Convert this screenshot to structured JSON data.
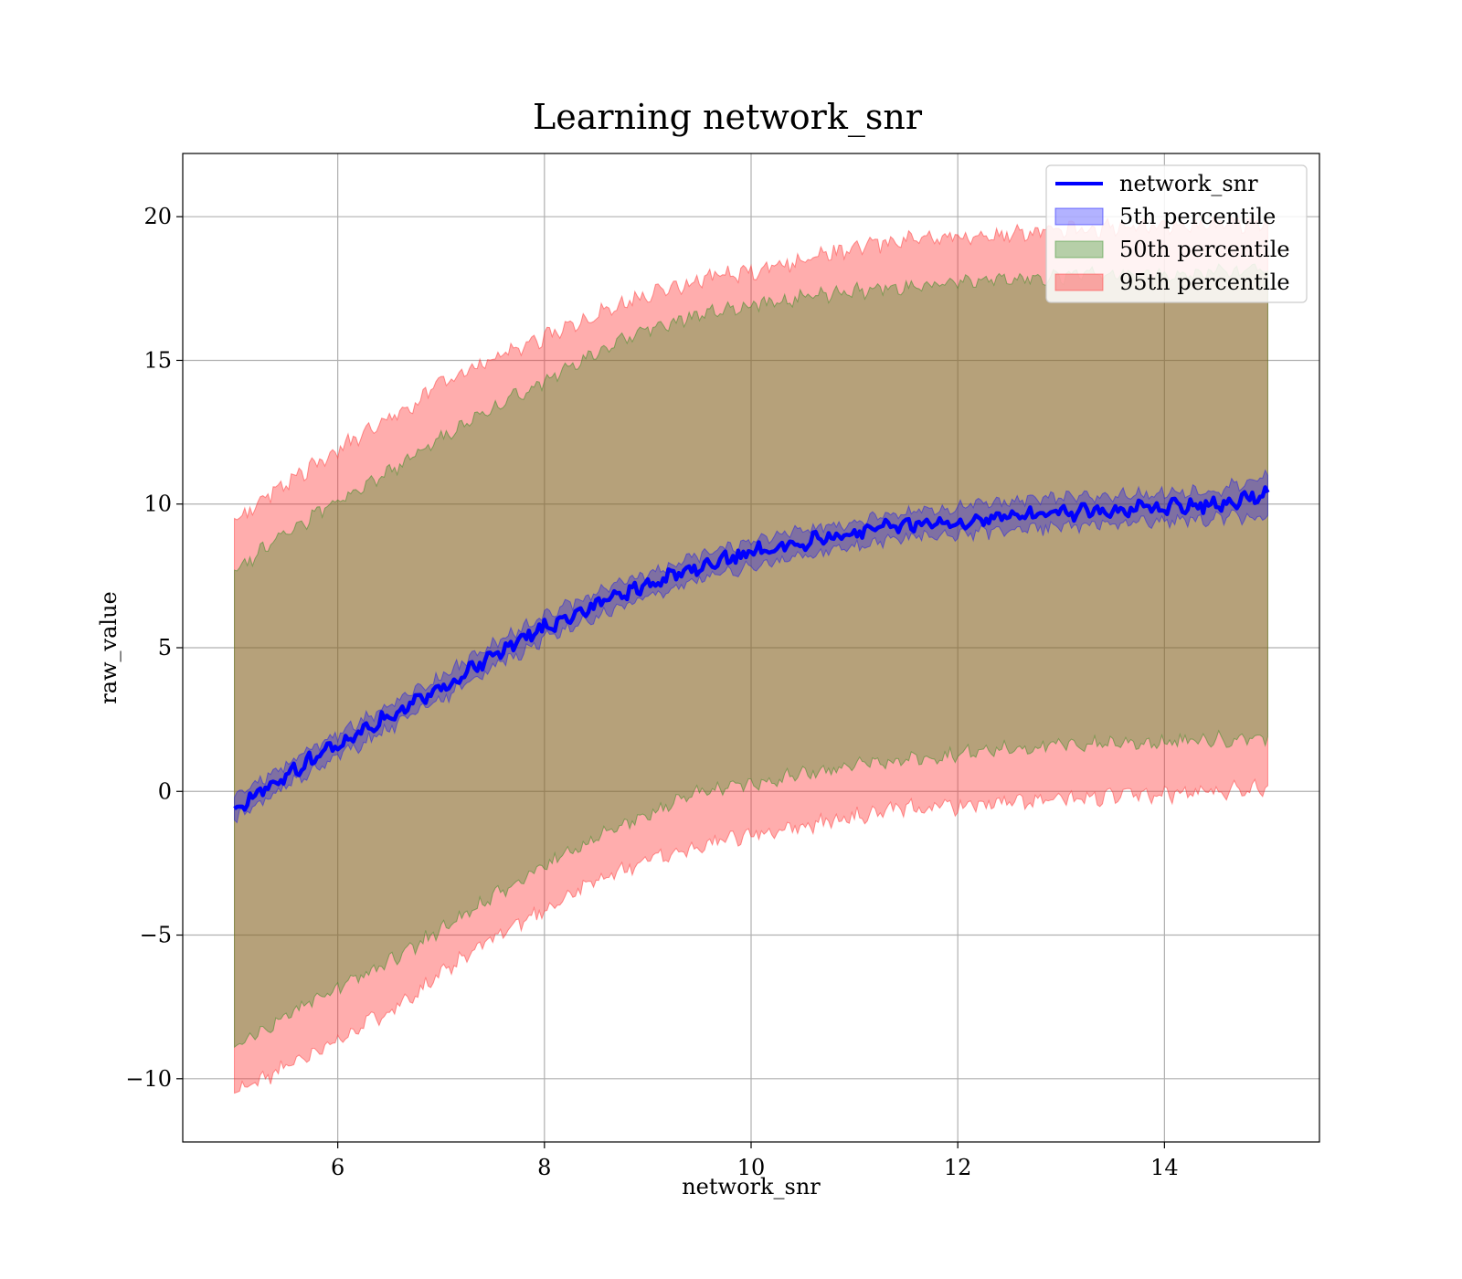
{
  "chart_data": {
    "type": "area",
    "title": "Learning network_snr",
    "xlabel": "network_snr",
    "ylabel": "raw_value",
    "xlim": [
      4.5,
      15.5
    ],
    "ylim": [
      -12.2,
      22.2
    ],
    "xticks": [
      6,
      8,
      10,
      12,
      14
    ],
    "xtick_labels": [
      "6",
      "8",
      "10",
      "12",
      "14"
    ],
    "yticks": [
      -10,
      -5,
      0,
      5,
      10,
      15,
      20
    ],
    "ytick_labels": [
      "−10",
      "−5",
      "0",
      "5",
      "10",
      "15",
      "20"
    ],
    "grid": true,
    "legend_position": "top-right",
    "x": [
      5.0,
      5.5,
      6.0,
      6.5,
      7.0,
      7.5,
      8.0,
      8.5,
      9.0,
      9.5,
      10.0,
      10.5,
      11.0,
      11.5,
      12.0,
      12.5,
      13.0,
      13.5,
      14.0,
      14.5,
      15.0
    ],
    "series": [
      {
        "name": "network_snr",
        "kind": "line",
        "color": "#0000ff",
        "values": [
          -0.6,
          0.6,
          1.6,
          2.6,
          3.6,
          4.7,
          5.7,
          6.5,
          7.2,
          7.8,
          8.3,
          8.7,
          9.0,
          9.3,
          9.4,
          9.6,
          9.7,
          9.8,
          9.9,
          10.0,
          10.4
        ]
      },
      {
        "name": "5th percentile",
        "kind": "band",
        "color": "#0000ff",
        "opacity": 0.3,
        "lower": [
          -1.0,
          0.2,
          1.2,
          2.2,
          3.2,
          4.3,
          5.3,
          6.1,
          6.8,
          7.4,
          7.8,
          8.2,
          8.5,
          8.8,
          8.9,
          9.1,
          9.2,
          9.3,
          9.4,
          9.5,
          9.6
        ],
        "upper": [
          -0.2,
          1.0,
          2.0,
          3.0,
          4.0,
          5.1,
          6.1,
          6.9,
          7.6,
          8.2,
          8.7,
          9.1,
          9.4,
          9.7,
          9.9,
          10.1,
          10.2,
          10.3,
          10.4,
          10.5,
          11.0
        ]
      },
      {
        "name": "50th percentile",
        "kind": "band",
        "color": "#2e8b1e",
        "opacity": 0.35,
        "lower": [
          -8.9,
          -7.8,
          -6.9,
          -5.9,
          -4.8,
          -3.7,
          -2.6,
          -1.6,
          -0.8,
          0.0,
          0.3,
          0.6,
          0.9,
          1.1,
          1.3,
          1.5,
          1.6,
          1.7,
          1.7,
          1.8,
          1.9
        ],
        "upper": [
          7.7,
          9.0,
          10.1,
          11.1,
          12.3,
          13.3,
          14.3,
          15.3,
          16.1,
          16.6,
          16.9,
          17.2,
          17.4,
          17.6,
          17.7,
          17.8,
          17.9,
          18.0,
          18.0,
          18.1,
          18.1
        ]
      },
      {
        "name": "95th percentile",
        "kind": "band",
        "color": "#ff3333",
        "opacity": 0.4,
        "lower": [
          -10.5,
          -9.6,
          -8.6,
          -7.6,
          -6.4,
          -5.1,
          -4.1,
          -3.1,
          -2.4,
          -1.9,
          -1.5,
          -1.2,
          -0.9,
          -0.6,
          -0.5,
          -0.4,
          -0.3,
          -0.2,
          -0.1,
          0.0,
          0.2
        ],
        "upper": [
          9.5,
          10.7,
          11.9,
          12.9,
          14.2,
          15.0,
          15.8,
          16.6,
          17.3,
          17.8,
          18.1,
          18.5,
          18.9,
          19.2,
          19.3,
          19.4,
          19.5,
          19.6,
          19.7,
          19.7,
          19.8
        ]
      }
    ]
  }
}
